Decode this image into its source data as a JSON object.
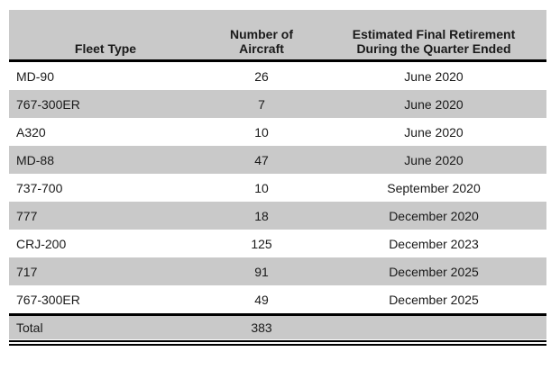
{
  "header": {
    "col1": "Fleet Type",
    "col2_line1": "Number of",
    "col2_line2": "Aircraft",
    "col3_line1": "Estimated Final Retirement",
    "col3_line2": "During the Quarter Ended"
  },
  "rows": [
    {
      "fleet": "MD-90",
      "aircraft": "26",
      "retirement": "June 2020"
    },
    {
      "fleet": "767-300ER",
      "aircraft": "7",
      "retirement": "June 2020"
    },
    {
      "fleet": "A320",
      "aircraft": "10",
      "retirement": "June 2020"
    },
    {
      "fleet": "MD-88",
      "aircraft": "47",
      "retirement": "June 2020"
    },
    {
      "fleet": "737-700",
      "aircraft": "10",
      "retirement": "September 2020"
    },
    {
      "fleet": "777",
      "aircraft": "18",
      "retirement": "December 2020"
    },
    {
      "fleet": "CRJ-200",
      "aircraft": "125",
      "retirement": "December 2023"
    },
    {
      "fleet": "717",
      "aircraft": "91",
      "retirement": "December 2025"
    },
    {
      "fleet": "767-300ER",
      "aircraft": "49",
      "retirement": "December 2025"
    }
  ],
  "total_row": {
    "label": "Total",
    "aircraft": "383",
    "retirement": ""
  },
  "colors": {
    "shade": "#c9c9c9",
    "line": "#000000",
    "text": "#1a1a1a"
  }
}
